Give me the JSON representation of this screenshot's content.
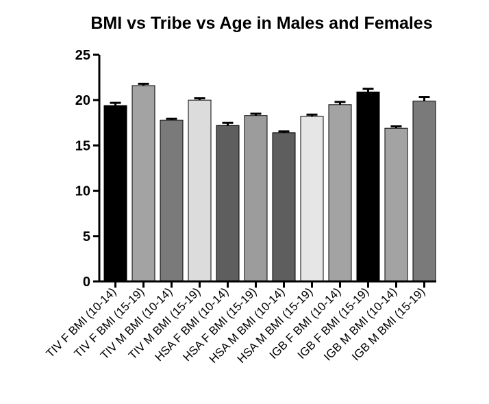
{
  "chart_data": {
    "type": "bar",
    "title": "BMI vs Tribe vs Age in Males and Females",
    "xlabel": "",
    "ylabel": "",
    "ylim": [
      0,
      25
    ],
    "yticks": [
      0,
      5,
      10,
      15,
      20,
      25
    ],
    "grid": false,
    "legend": "none",
    "categories": [
      "TIV F BMI (10-14)",
      "TIV F BMI (15-19)",
      "TIV M BMI (10-14)",
      "TIV M BMI (15-19)",
      "HSA F BMI (10-14)",
      "HSA F BMI (15-19)",
      "HSA M BMI (10-14)",
      "HSA M BMI (15-19)",
      "IGB F BMI (10-14)",
      "IGB F BMI (15-19)",
      "IGB M BMI (10-14)",
      "IGB M BMI (15-19)"
    ],
    "values": [
      19.4,
      21.6,
      17.8,
      20.0,
      17.2,
      18.3,
      16.4,
      18.2,
      19.5,
      20.9,
      16.9,
      19.9
    ],
    "errors": [
      0.3,
      0.2,
      0.15,
      0.2,
      0.3,
      0.2,
      0.15,
      0.2,
      0.3,
      0.35,
      0.2,
      0.45
    ],
    "colors": [
      "#000000",
      "#a3a3a3",
      "#7a7a7a",
      "#dcdcdc",
      "#5e5e5e",
      "#9c9c9c",
      "#5e5e5e",
      "#e6e6e6",
      "#a3a3a3",
      "#000000",
      "#a3a3a3",
      "#7a7a7a"
    ]
  }
}
